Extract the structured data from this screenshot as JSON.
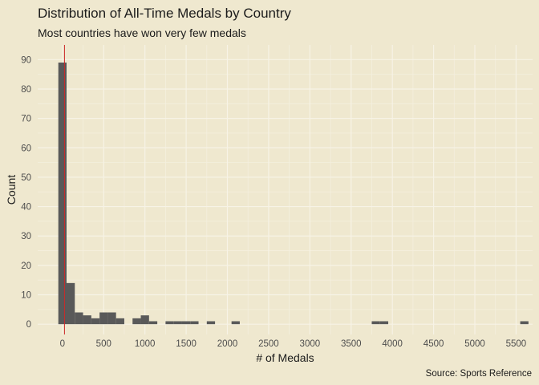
{
  "chart_data": {
    "type": "bar",
    "title": "Distribution of All-Time Medals by Country",
    "subtitle": "Most countries have won very few medals",
    "caption": "Source: Sports Reference",
    "xlabel": "# of Medals",
    "ylabel": "Count",
    "xlim": [
      -300,
      5700
    ],
    "ylim": [
      -3.5,
      95
    ],
    "x_ticks": [
      0,
      500,
      1000,
      1500,
      2000,
      2500,
      3000,
      3500,
      4000,
      4500,
      5000,
      5500
    ],
    "y_ticks": [
      0,
      10,
      20,
      30,
      40,
      50,
      60,
      70,
      80,
      90
    ],
    "bin_width": 100,
    "bins": [
      {
        "x0": -50,
        "x1": 50,
        "count": 89
      },
      {
        "x0": 50,
        "x1": 150,
        "count": 14
      },
      {
        "x0": 150,
        "x1": 250,
        "count": 4
      },
      {
        "x0": 250,
        "x1": 350,
        "count": 3
      },
      {
        "x0": 350,
        "x1": 450,
        "count": 2
      },
      {
        "x0": 450,
        "x1": 550,
        "count": 4
      },
      {
        "x0": 550,
        "x1": 650,
        "count": 4
      },
      {
        "x0": 650,
        "x1": 750,
        "count": 2
      },
      {
        "x0": 850,
        "x1": 950,
        "count": 2
      },
      {
        "x0": 950,
        "x1": 1050,
        "count": 3
      },
      {
        "x0": 1050,
        "x1": 1150,
        "count": 1
      },
      {
        "x0": 1250,
        "x1": 1350,
        "count": 1
      },
      {
        "x0": 1350,
        "x1": 1450,
        "count": 1
      },
      {
        "x0": 1450,
        "x1": 1550,
        "count": 1
      },
      {
        "x0": 1550,
        "x1": 1650,
        "count": 1
      },
      {
        "x0": 1750,
        "x1": 1850,
        "count": 1
      },
      {
        "x0": 2050,
        "x1": 2150,
        "count": 1
      },
      {
        "x0": 3750,
        "x1": 3850,
        "count": 1
      },
      {
        "x0": 3850,
        "x1": 3950,
        "count": 1
      },
      {
        "x0": 5550,
        "x1": 5650,
        "count": 1
      }
    ],
    "reference_line": {
      "x": 25,
      "color": "#cc2a2a"
    },
    "bar_color": "#595959",
    "background": "#efe8cf",
    "grid": true,
    "legend": "none"
  }
}
